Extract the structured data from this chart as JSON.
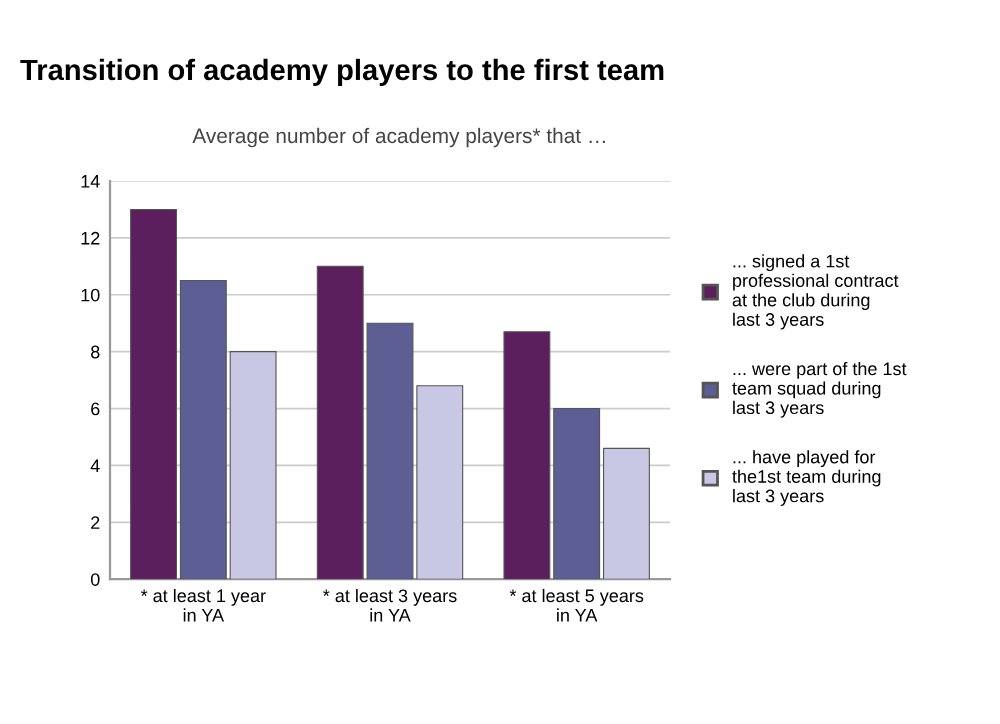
{
  "chart_data": {
    "type": "bar",
    "title": "Transition of academy players to the first team",
    "subtitle": "Average number of academy players* that …",
    "categories": [
      "* at least 1 year\nin YA",
      "* at least 3 years\nin YA",
      "* at least 5 years\nin YA"
    ],
    "series": [
      {
        "name": "... signed a 1st\nprofessional contract\nat the club during\nlast 3 years",
        "color": "#5c1f5e",
        "values": [
          13,
          11,
          8.7
        ]
      },
      {
        "name": "... were part of the 1st\nteam squad during\nlast 3 years",
        "color": "#5d5f94",
        "values": [
          10.5,
          9,
          6
        ]
      },
      {
        "name": "... have played for\nthe1st team during\nlast 3 years",
        "color": "#c9c8e4",
        "values": [
          8,
          6.8,
          4.6
        ]
      }
    ],
    "ylim": [
      0,
      14
    ],
    "yticks": [
      0,
      2,
      4,
      6,
      8,
      10,
      12,
      14
    ],
    "grid": "y",
    "legend": "right"
  }
}
